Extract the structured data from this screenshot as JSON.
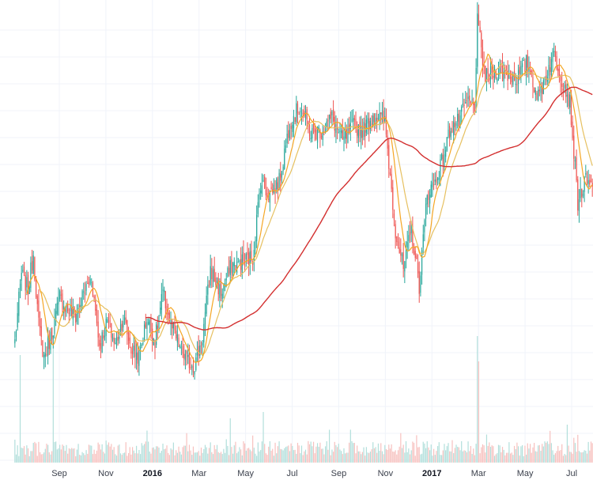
{
  "chart_data": {
    "type": "candlestick",
    "x_ticks": [
      {
        "label": "Sep",
        "bold": false
      },
      {
        "label": "Nov",
        "bold": false
      },
      {
        "label": "2016",
        "bold": true
      },
      {
        "label": "Mar",
        "bold": false
      },
      {
        "label": "May",
        "bold": false
      },
      {
        "label": "Jul",
        "bold": false
      },
      {
        "label": "Sep",
        "bold": false
      },
      {
        "label": "Nov",
        "bold": false
      },
      {
        "label": "2017",
        "bold": true
      },
      {
        "label": "Mar",
        "bold": false
      },
      {
        "label": "May",
        "bold": false
      },
      {
        "label": "Jul",
        "bold": false
      }
    ],
    "price_anchors": [
      [
        0,
        0.16
      ],
      [
        5,
        0.33
      ],
      [
        10,
        0.29
      ],
      [
        14,
        0.38
      ],
      [
        18,
        0.2
      ],
      [
        22,
        0.12
      ],
      [
        28,
        0.18
      ],
      [
        34,
        0.27
      ],
      [
        40,
        0.24
      ],
      [
        46,
        0.22
      ],
      [
        52,
        0.28
      ],
      [
        58,
        0.32
      ],
      [
        64,
        0.15
      ],
      [
        70,
        0.21
      ],
      [
        76,
        0.15
      ],
      [
        82,
        0.22
      ],
      [
        88,
        0.14
      ],
      [
        94,
        0.12
      ],
      [
        100,
        0.22
      ],
      [
        106,
        0.16
      ],
      [
        112,
        0.28
      ],
      [
        118,
        0.2
      ],
      [
        124,
        0.15
      ],
      [
        130,
        0.11
      ],
      [
        136,
        0.1
      ],
      [
        142,
        0.17
      ],
      [
        148,
        0.34
      ],
      [
        156,
        0.28
      ],
      [
        164,
        0.35
      ],
      [
        172,
        0.36
      ],
      [
        180,
        0.37
      ],
      [
        186,
        0.56
      ],
      [
        192,
        0.53
      ],
      [
        200,
        0.56
      ],
      [
        208,
        0.71
      ],
      [
        216,
        0.75
      ],
      [
        224,
        0.68
      ],
      [
        232,
        0.69
      ],
      [
        240,
        0.72
      ],
      [
        248,
        0.66
      ],
      [
        256,
        0.7
      ],
      [
        264,
        0.69
      ],
      [
        272,
        0.73
      ],
      [
        280,
        0.71
      ],
      [
        288,
        0.44
      ],
      [
        294,
        0.34
      ],
      [
        300,
        0.44
      ],
      [
        306,
        0.3
      ],
      [
        312,
        0.53
      ],
      [
        318,
        0.56
      ],
      [
        324,
        0.62
      ],
      [
        330,
        0.7
      ],
      [
        336,
        0.71
      ],
      [
        342,
        0.76
      ],
      [
        348,
        0.75
      ],
      [
        350,
        0.96
      ],
      [
        356,
        0.82
      ],
      [
        364,
        0.84
      ],
      [
        372,
        0.83
      ],
      [
        380,
        0.82
      ],
      [
        388,
        0.86
      ],
      [
        396,
        0.77
      ],
      [
        402,
        0.83
      ],
      [
        408,
        0.88
      ],
      [
        414,
        0.82
      ],
      [
        420,
        0.76
      ],
      [
        426,
        0.51
      ],
      [
        432,
        0.56
      ],
      [
        437,
        0.54
      ]
    ],
    "ma_fast_period": 10,
    "ma_slow_period": 20,
    "ma_long_period": 100,
    "volume_spikes": [
      {
        "bar": 4,
        "level": 0.85
      },
      {
        "bar": 29,
        "level": 1.0
      },
      {
        "bar": 163,
        "level": 0.35
      },
      {
        "bar": 188,
        "level": 0.4
      },
      {
        "bar": 350,
        "level": 1.0
      },
      {
        "bar": 351,
        "level": 0.8
      },
      {
        "bar": 418,
        "level": 0.3
      }
    ],
    "colors": {
      "up": "#26a69a",
      "down": "#ef5350",
      "volume_up": "#b2dfdb",
      "volume_down": "#f7c1bf",
      "ma_fast": "#f5a623",
      "ma_slow": "#e6c060",
      "ma_long": "#d32f2f",
      "grid": "#f0f3fa",
      "background": "#ffffff",
      "axis_text": "#3a3f4b"
    },
    "grid": true
  }
}
